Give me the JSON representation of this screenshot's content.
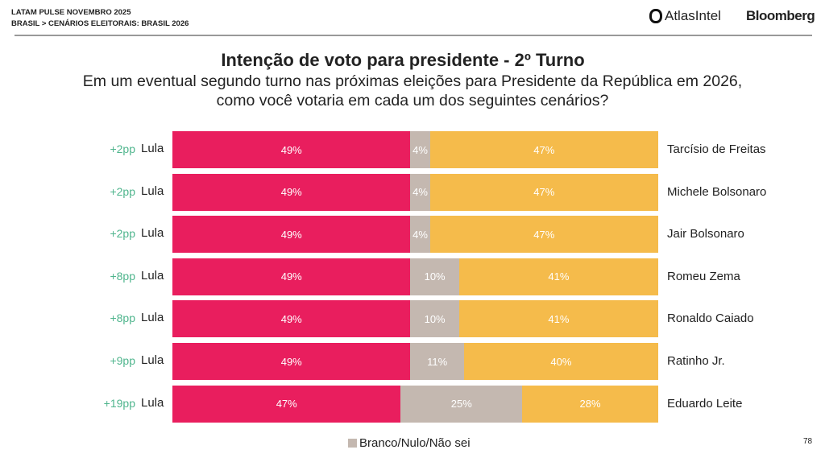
{
  "header": {
    "line1": "LATAM PULSE NOVEMBRO 2025",
    "line2": "BRASIL > CENÁRIOS ELEITORAIS: BRASIL 2026",
    "logo_atlas": "AtlasIntel",
    "logo_bloomberg": "Bloomberg"
  },
  "page_number": "78",
  "chart_data": {
    "type": "bar",
    "stacked": true,
    "orientation": "horizontal",
    "title": "Intenção de voto para presidente - 2º Turno",
    "subtitle_line1": "Em um eventual segundo turno nas próximas eleições para Presidente da República em 2026,",
    "subtitle_line2": "como você votaria em cada um dos seguintes cenários?",
    "legend": "Branco/Nulo/Não sei",
    "colors": {
      "lula": "#e91e5e",
      "blank": "#c4b8b0",
      "opponent": "#f5bb4b",
      "diff": "#4fb58d"
    },
    "rows": [
      {
        "diff": "+2pp",
        "left": "Lula",
        "lula": 49,
        "blank": 4,
        "opponent_value": 47,
        "opponent": "Tarcísio de Freitas"
      },
      {
        "diff": "+2pp",
        "left": "Lula",
        "lula": 49,
        "blank": 4,
        "opponent_value": 47,
        "opponent": "Michele Bolsonaro"
      },
      {
        "diff": "+2pp",
        "left": "Lula",
        "lula": 49,
        "blank": 4,
        "opponent_value": 47,
        "opponent": "Jair Bolsonaro"
      },
      {
        "diff": "+8pp",
        "left": "Lula",
        "lula": 49,
        "blank": 10,
        "opponent_value": 41,
        "opponent": "Romeu Zema"
      },
      {
        "diff": "+8pp",
        "left": "Lula",
        "lula": 49,
        "blank": 10,
        "opponent_value": 41,
        "opponent": "Ronaldo Caiado"
      },
      {
        "diff": "+9pp",
        "left": "Lula",
        "lula": 49,
        "blank": 11,
        "opponent_value": 40,
        "opponent": "Ratinho Jr."
      },
      {
        "diff": "+19pp",
        "left": "Lula",
        "lula": 47,
        "blank": 25,
        "opponent_value": 28,
        "opponent": "Eduardo Leite"
      }
    ]
  }
}
